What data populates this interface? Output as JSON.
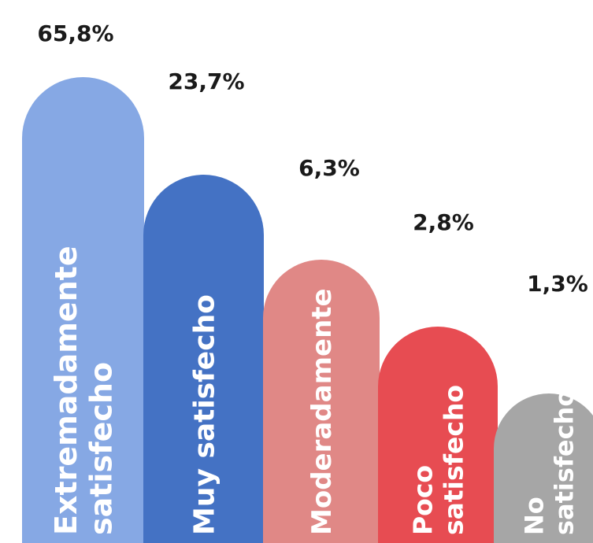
{
  "chart_data": {
    "type": "bar",
    "categories": [
      [
        "Extremadamente",
        "satisfecho"
      ],
      [
        "Muy satisfecho"
      ],
      [
        "Moderadamente"
      ],
      [
        "Poco",
        "satisfecho"
      ],
      [
        "No",
        "satisfecho"
      ]
    ],
    "values": [
      65.8,
      23.7,
      6.3,
      2.8,
      1.3
    ],
    "value_labels": [
      "65,8%",
      "23,7%",
      "6,3%",
      "2,8%",
      "1,3%"
    ],
    "colors": [
      "#86a8e4",
      "#4472c4",
      "#e08886",
      "#e74c52",
      "#a6a6a6"
    ],
    "grid": false,
    "legend": "none"
  }
}
